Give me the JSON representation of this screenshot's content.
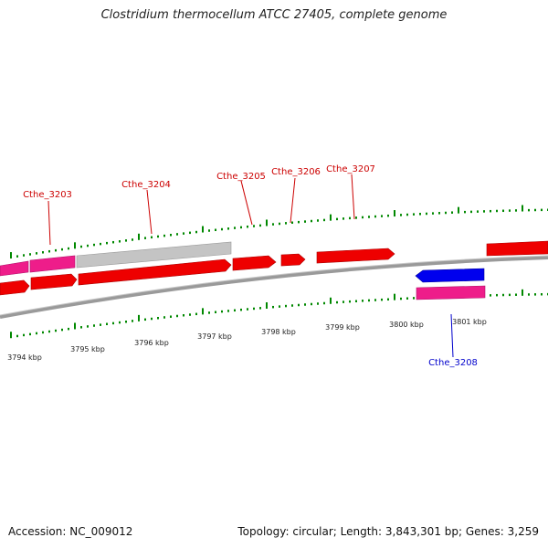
{
  "title": "Clostridium thermocellum ATCC 27405, complete genome",
  "footer": {
    "accession": "Accession: NC_009012",
    "stats": "Topology: circular; Length: 3,843,301 bp; Genes: 3,259"
  },
  "colors": {
    "forward_gene": "#ee0000",
    "reverse_gene": "#0000dd",
    "pink_track": "#ee1d8a",
    "gray_track": "#bdbdbd",
    "backbone": "#808080",
    "tick": "#008800",
    "label_forward": "#cc0000",
    "label_reverse": "#0000cc"
  },
  "coordinate_labels": [
    "3794 kbp",
    "3795 kbp",
    "3796 kbp",
    "3797 kbp",
    "3798 kbp",
    "3799 kbp",
    "3800 kbp",
    "3801 kbp"
  ],
  "gene_labels": [
    {
      "text": "Cthe_3203",
      "strand": "forward"
    },
    {
      "text": "Cthe_3204",
      "strand": "forward"
    },
    {
      "text": "Cthe_3205",
      "strand": "forward"
    },
    {
      "text": "Cthe_3206",
      "strand": "forward"
    },
    {
      "text": "Cthe_3207",
      "strand": "forward"
    },
    {
      "text": "Cthe_3208",
      "strand": "reverse"
    }
  ]
}
